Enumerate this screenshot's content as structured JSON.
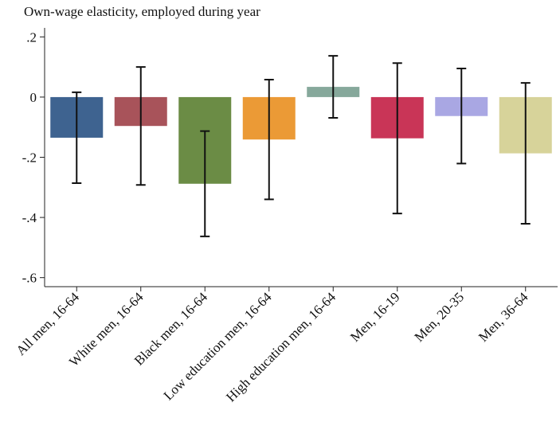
{
  "chart_data": {
    "type": "bar",
    "title": "Own-wage elasticity, employed during year",
    "categories": [
      "All men, 16-64",
      "White men, 16-64",
      "Black men, 16-64",
      "Low education men, 16-64",
      "High education men, 16-64",
      "Men, 16-19",
      "Men, 20-35",
      "Men, 36-64"
    ],
    "values": [
      -0.135,
      -0.096,
      -0.288,
      -0.141,
      0.034,
      -0.137,
      -0.063,
      -0.187
    ],
    "errors": [
      0.151,
      0.196,
      0.175,
      0.199,
      0.103,
      0.25,
      0.158,
      0.234
    ],
    "colors": [
      "#3e6390",
      "#a8535a",
      "#6b8c45",
      "#eb9a36",
      "#86a89b",
      "#c93557",
      "#a9a7e3",
      "#d7d39a"
    ],
    "ylim": [
      -0.63,
      0.23
    ],
    "yticks": [
      {
        "value": 0.2,
        "label": ".2"
      },
      0,
      {
        "value": -0.2,
        "label": "-.2"
      },
      {
        "value": -0.4,
        "label": "-.4"
      },
      {
        "value": -0.6,
        "label": "-.6"
      }
    ]
  }
}
